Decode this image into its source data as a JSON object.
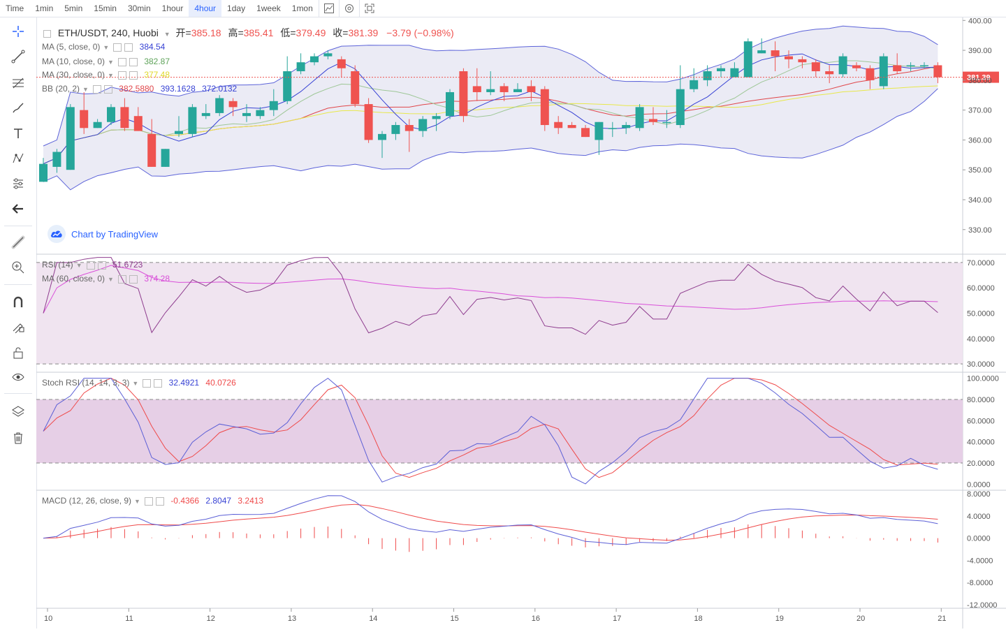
{
  "toolbar": {
    "items": [
      "Time",
      "1min",
      "5min",
      "15min",
      "30min",
      "1hour",
      "4hour",
      "1day",
      "1week",
      "1mon"
    ],
    "active": "4hour",
    "icons": [
      "indicator-icon",
      "settings-icon",
      "fullscreen-icon"
    ]
  },
  "sidebar": {
    "tools": [
      "crosshair-icon",
      "trend-line-icon",
      "fib-icon",
      "brush-icon",
      "text-icon",
      "pattern-icon",
      "prediction-icon",
      "back-arrow-icon",
      "ruler-icon",
      "zoom-in-icon",
      "magnet-icon",
      "lock-draw-icon",
      "unlock-icon",
      "eye-icon",
      "layers-icon",
      "trash-icon"
    ]
  },
  "main": {
    "symbol": "ETH/USDT, 240, Huobi",
    "o_label": "开=",
    "o_value": "385.18",
    "h_label": "高=",
    "h_value": "385.41",
    "l_label": "低=",
    "l_value": "379.49",
    "c_label": "收=",
    "c_value": "381.39",
    "change": "−3.79 (−0.98%)",
    "ma5": {
      "label": "MA (5, close, 0)",
      "value": "384.54"
    },
    "ma10": {
      "label": "MA (10, close, 0)",
      "value": "382.87"
    },
    "ma30": {
      "label": "MA (30, close, 0)",
      "value": "377.48"
    },
    "bb": {
      "label": "BB (20, 2)",
      "v1": "382.5880",
      "v2": "393.1628",
      "v3": "372.0132"
    },
    "price_tag": "381.39",
    "watermark": "Chart by TradingView"
  },
  "rsi": {
    "label": "RSI (14)",
    "value": "51.6723",
    "ma_label": "MA (60, close, 0)",
    "ma_value": "374.28"
  },
  "stoch": {
    "label": "Stoch RSI (14, 14, 3, 3)",
    "k": "32.4921",
    "d": "40.0726"
  },
  "macd": {
    "label": "MACD (12, 26, close, 9)",
    "hist": "-0.4366",
    "macd": "2.8047",
    "signal": "3.2413"
  },
  "colors": {
    "up": "#26a69a",
    "down": "#ef5350",
    "bb_line": "#5c63d9",
    "bb_fill": "#e4e4f2",
    "ma5": "#3742d4",
    "ma10": "#9ec797",
    "ma30": "#e8e84a",
    "bb_basis": "#e0464a",
    "rsi": "#8e3c8e",
    "rsi_ma": "#d94fd9",
    "stoch_k": "#5b5fd6",
    "stoch_d": "#ef4a4a",
    "macd": "#5b5fd6",
    "signal": "#ef4a4a",
    "accent": "#2962ff"
  },
  "chart_data": [
    {
      "type": "candlestick",
      "title": "ETH/USDT, 240, Huobi",
      "ylim": [
        322,
        401
      ],
      "yticks": [
        "400.00",
        "390.00",
        "380.00",
        "370.00",
        "360.00",
        "350.00",
        "340.00",
        "330.00"
      ],
      "xticks": [
        "10",
        "11",
        "12",
        "13",
        "14",
        "15",
        "16",
        "17",
        "18",
        "19",
        "20",
        "21"
      ],
      "candles": [
        [
          346,
          352,
          346,
          354
        ],
        [
          351,
          356,
          349,
          357
        ],
        [
          350,
          371,
          350,
          372
        ],
        [
          370,
          364,
          362,
          376
        ],
        [
          364,
          366,
          364,
          367
        ],
        [
          366,
          371,
          365,
          372
        ],
        [
          371,
          364,
          363,
          374
        ],
        [
          368,
          363,
          363,
          371
        ],
        [
          362,
          351,
          351,
          367
        ],
        [
          351,
          357,
          351,
          357
        ],
        [
          362,
          363,
          361,
          368
        ],
        [
          362,
          371,
          361,
          372
        ],
        [
          368,
          369,
          367,
          372
        ],
        [
          369,
          374,
          368,
          375
        ],
        [
          373,
          371,
          368,
          374
        ],
        [
          368,
          369,
          366,
          372
        ],
        [
          368,
          370,
          367,
          371
        ],
        [
          370,
          373,
          368,
          377
        ],
        [
          373,
          383,
          372,
          388
        ],
        [
          383,
          386,
          382,
          389
        ],
        [
          386,
          388,
          385,
          389
        ],
        [
          388,
          389,
          387,
          390
        ],
        [
          387,
          384,
          381,
          388
        ],
        [
          383,
          372,
          371,
          385
        ],
        [
          372,
          360,
          359,
          374
        ],
        [
          360,
          362,
          354,
          363
        ],
        [
          362,
          365,
          360,
          366
        ],
        [
          365,
          363,
          356,
          367
        ],
        [
          363,
          367,
          361,
          368
        ],
        [
          367,
          368,
          363,
          369
        ],
        [
          368,
          376,
          367,
          377
        ],
        [
          383,
          368,
          366,
          384
        ],
        [
          378,
          376,
          373,
          384
        ],
        [
          376,
          377,
          375,
          383
        ],
        [
          378,
          376,
          373,
          379
        ],
        [
          376,
          377,
          376,
          379
        ],
        [
          378,
          376,
          373,
          380
        ],
        [
          377,
          365,
          363,
          378
        ],
        [
          366,
          364,
          362,
          368
        ],
        [
          365,
          364,
          364,
          366
        ],
        [
          364,
          361,
          361,
          365
        ],
        [
          360,
          366,
          355,
          366
        ],
        [
          364,
          364,
          361,
          366
        ],
        [
          364,
          365,
          362,
          366
        ],
        [
          364,
          371,
          363,
          372
        ],
        [
          367,
          366,
          365,
          371
        ],
        [
          366,
          366,
          364,
          370
        ],
        [
          365,
          377,
          364,
          385
        ],
        [
          377,
          380,
          376,
          384
        ],
        [
          380,
          383,
          378,
          385
        ],
        [
          383,
          384,
          381,
          385
        ],
        [
          381,
          384,
          381,
          386
        ],
        [
          381,
          393,
          381,
          394
        ],
        [
          389,
          390,
          389,
          394
        ],
        [
          390,
          388,
          383,
          393
        ],
        [
          388,
          387,
          384,
          390
        ],
        [
          387,
          386,
          384,
          388
        ],
        [
          386,
          383,
          381,
          387
        ],
        [
          383,
          382,
          379,
          385
        ],
        [
          382,
          388,
          381,
          389
        ],
        [
          385,
          384,
          383,
          386
        ],
        [
          384,
          380,
          377,
          385
        ],
        [
          378,
          388,
          377,
          389
        ],
        [
          385,
          383,
          382,
          389
        ],
        [
          385,
          385,
          383,
          386
        ],
        [
          385,
          385,
          384,
          386
        ],
        [
          385,
          381,
          379,
          386
        ]
      ]
    },
    {
      "type": "line",
      "title": "RSI (14)",
      "ylim": [
        27,
        73
      ],
      "yticks": [
        "70.0000",
        "60.0000",
        "50.0000",
        "40.0000",
        "30.0000"
      ]
    },
    {
      "type": "line",
      "title": "Stoch RSI (14, 14, 3, 3)",
      "ylim": [
        -5,
        105
      ],
      "yticks": [
        "100.0000",
        "80.0000",
        "60.0000",
        "40.0000",
        "20.0000",
        "0.0000"
      ]
    },
    {
      "type": "line",
      "title": "MACD (12, 26, close, 9)",
      "ylim": [
        -12.5,
        8.5
      ],
      "yticks": [
        "8.0000",
        "4.0000",
        "0.0000",
        "-4.0000",
        "-8.0000",
        "-12.0000"
      ]
    }
  ]
}
